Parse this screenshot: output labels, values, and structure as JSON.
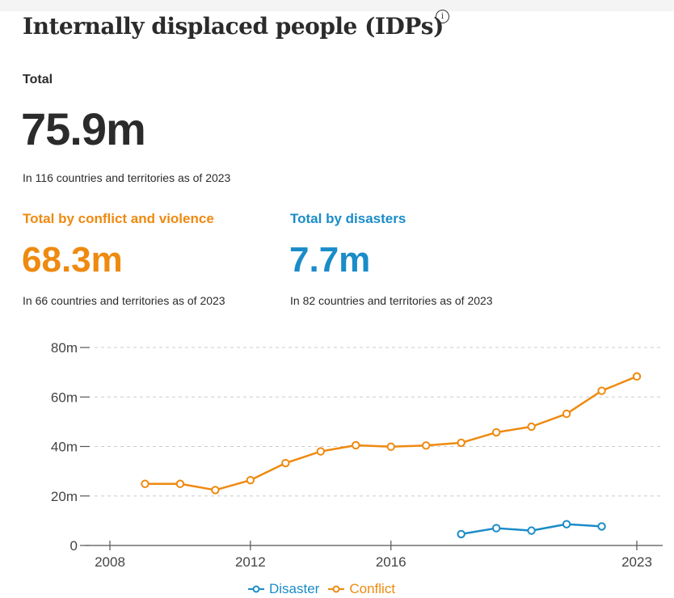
{
  "header": {
    "title": "Internally displaced people (IDPs)",
    "info_icon": "info-circle-icon"
  },
  "total": {
    "label": "Total",
    "value": "75.9m",
    "note": "In 116 countries and territories as of 2023"
  },
  "conflict": {
    "label": "Total by conflict and violence",
    "value": "68.3m",
    "note": "In 66 countries and territories as of 2023"
  },
  "disasters": {
    "label": "Total by disasters",
    "value": "7.7m",
    "note": "In 82 countries and territories as of 2023"
  },
  "colors": {
    "conflict": "#ee8a10",
    "disaster": "#1a8cc8",
    "axis": "#555555",
    "grid": "#cccccc"
  },
  "chart_data": {
    "type": "line",
    "title": "",
    "xlabel": "",
    "ylabel": "",
    "x_ticks": [
      "2008",
      "2012",
      "2016",
      "2023"
    ],
    "y_ticks": [
      "0",
      "20m",
      "40m",
      "60m",
      "80m"
    ],
    "xlim": [
      2008,
      2023
    ],
    "ylim": [
      0,
      80
    ],
    "grid": "horizontal dashed",
    "legend_position": "bottom",
    "series": [
      {
        "name": "Disaster",
        "color": "#1a8cc8",
        "x": [
          2018,
          2019,
          2020,
          2021,
          2022,
          2023
        ],
        "values": [
          4.6,
          7.0,
          6.0,
          8.6,
          7.7,
          null
        ]
      },
      {
        "name": "Conflict",
        "color": "#ee8a10",
        "x": [
          2009,
          2010,
          2011,
          2012,
          2013,
          2014,
          2015,
          2016,
          2017,
          2018,
          2019,
          2020,
          2021,
          2022,
          2023
        ],
        "values": [
          24.9,
          24.9,
          22.4,
          26.4,
          33.3,
          38.0,
          40.5,
          39.9,
          40.4,
          41.5,
          45.7,
          48.0,
          53.2,
          62.5,
          68.3
        ]
      }
    ],
    "legend": [
      "Disaster",
      "Conflict"
    ]
  }
}
